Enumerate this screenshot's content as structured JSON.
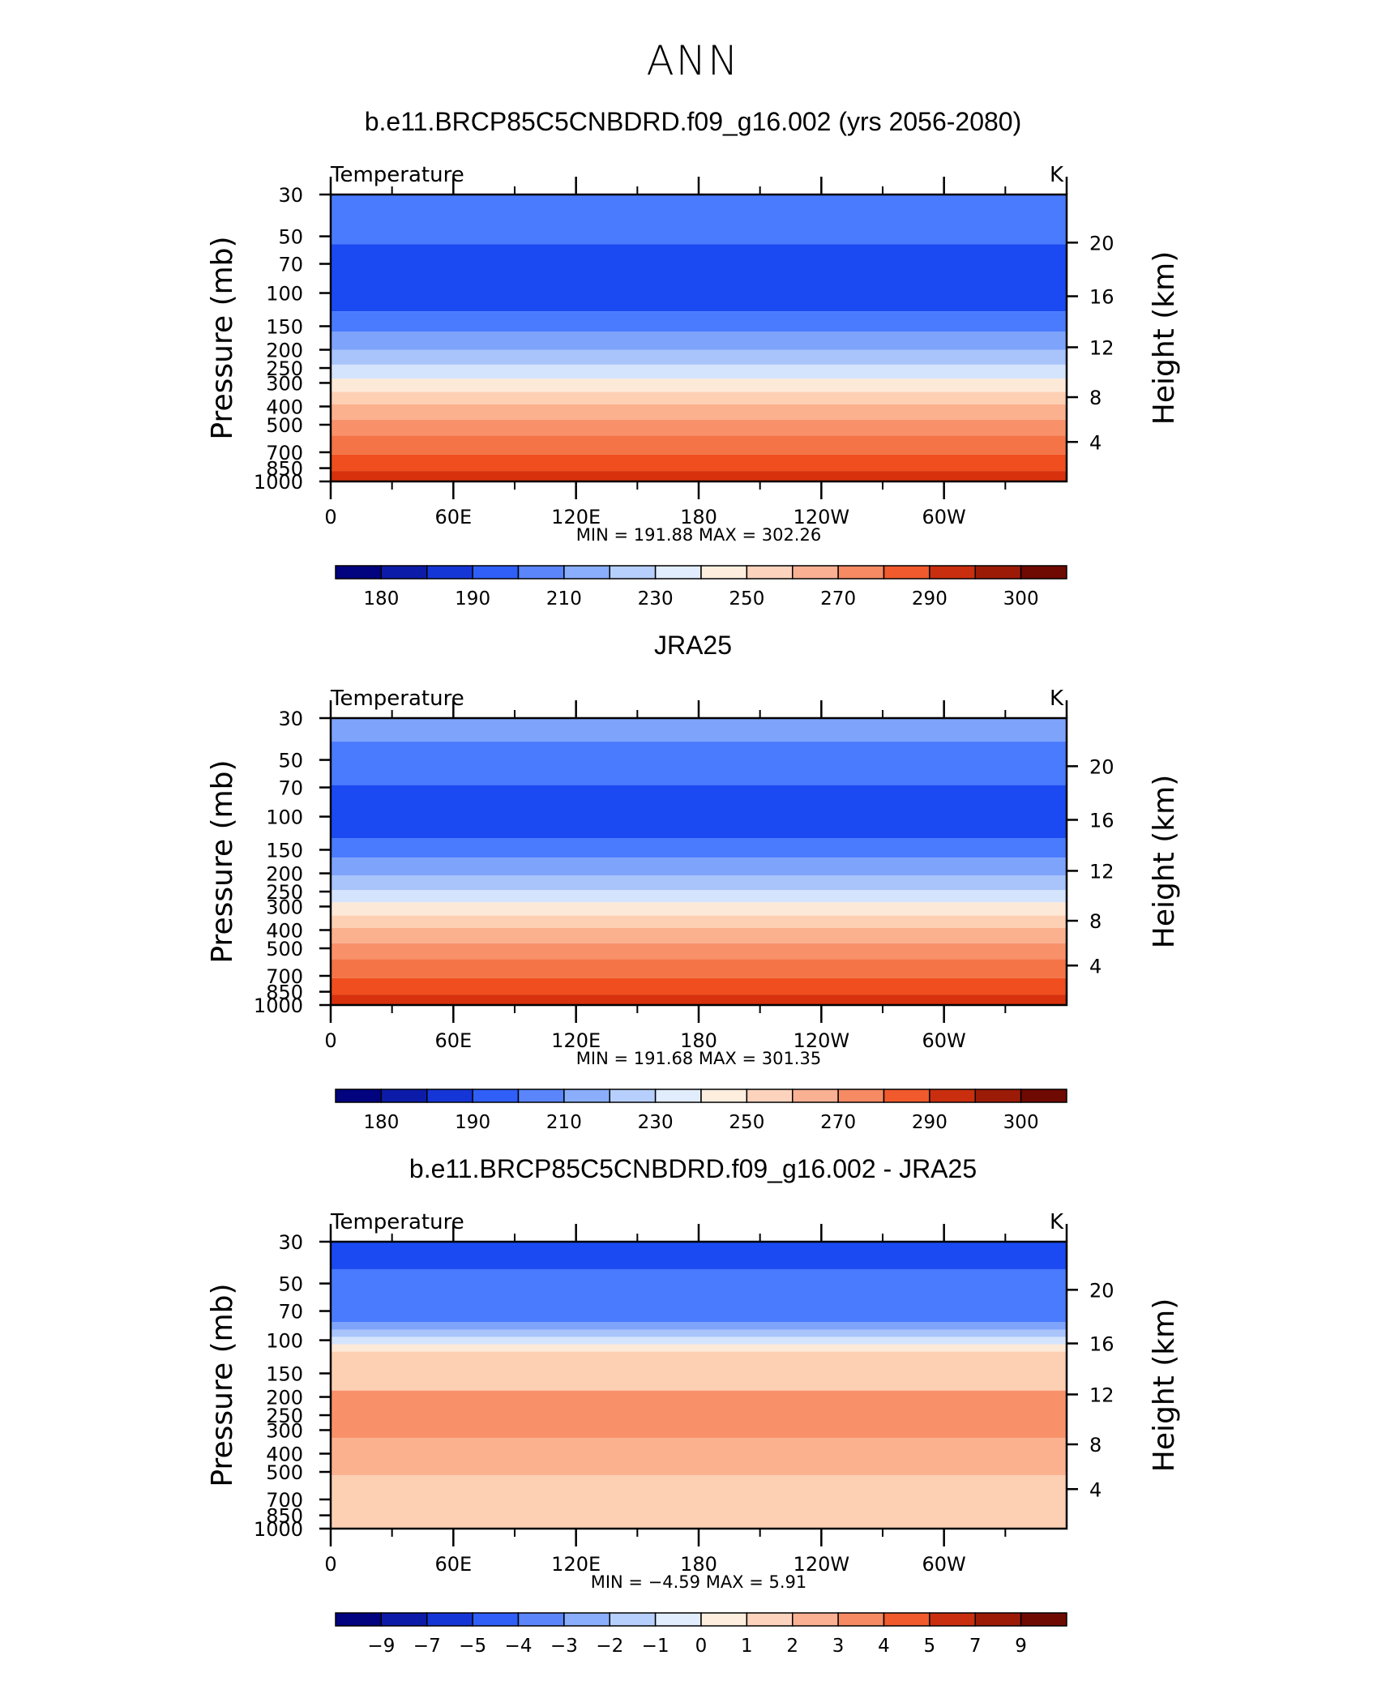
{
  "page_title": "ANN",
  "panels": [
    {
      "title": "b.e11.BRCP85C5CNBDRD.f09_g16.002 (yrs 2056-2080)",
      "left_label": "Temperature",
      "right_label": "K",
      "stats": "MIN = 191.88   MAX = 302.26",
      "bands": [
        {
          "p_top": 30,
          "p_bot": 55,
          "color": "#4a7bff"
        },
        {
          "p_top": 55,
          "p_bot": 125,
          "color": "#1b4af2"
        },
        {
          "p_top": 125,
          "p_bot": 160,
          "color": "#4a7bff"
        },
        {
          "p_top": 160,
          "p_bot": 200,
          "color": "#7ea3fb"
        },
        {
          "p_top": 200,
          "p_bot": 240,
          "color": "#a8c4fb"
        },
        {
          "p_top": 240,
          "p_bot": 285,
          "color": "#d4e4fc"
        },
        {
          "p_top": 285,
          "p_bot": 335,
          "color": "#fde9d8"
        },
        {
          "p_top": 335,
          "p_bot": 390,
          "color": "#fdd0b4"
        },
        {
          "p_top": 390,
          "p_bot": 470,
          "color": "#fbb08e"
        },
        {
          "p_top": 470,
          "p_bot": 570,
          "color": "#f8916a"
        },
        {
          "p_top": 570,
          "p_bot": 720,
          "color": "#f47447"
        },
        {
          "p_top": 720,
          "p_bot": 880,
          "color": "#f04e1e"
        },
        {
          "p_top": 880,
          "p_bot": 1000,
          "color": "#d8310e"
        }
      ],
      "chart_data": {
        "type": "heatmap",
        "title": "b.e11.BRCP85C5CNBDRD.f09_g16.002 (yrs 2056-2080)",
        "field": "Temperature",
        "units": "K",
        "min": 191.88,
        "max": 302.26,
        "colorbar_ticks": [
          "180",
          "190",
          "210",
          "230",
          "250",
          "270",
          "290",
          "300"
        ]
      }
    },
    {
      "title": "JRA25",
      "left_label": "Temperature",
      "right_label": "K",
      "stats": "MIN = 191.68   MAX = 301.35",
      "bands": [
        {
          "p_top": 30,
          "p_bot": 40,
          "color": "#7ea3fb"
        },
        {
          "p_top": 40,
          "p_bot": 68,
          "color": "#4a7bff"
        },
        {
          "p_top": 68,
          "p_bot": 130,
          "color": "#1b4af2"
        },
        {
          "p_top": 130,
          "p_bot": 165,
          "color": "#4a7bff"
        },
        {
          "p_top": 165,
          "p_bot": 205,
          "color": "#7ea3fb"
        },
        {
          "p_top": 205,
          "p_bot": 245,
          "color": "#a8c4fb"
        },
        {
          "p_top": 245,
          "p_bot": 285,
          "color": "#d4e4fc"
        },
        {
          "p_top": 285,
          "p_bot": 335,
          "color": "#fde9d8"
        },
        {
          "p_top": 335,
          "p_bot": 390,
          "color": "#fdd0b4"
        },
        {
          "p_top": 390,
          "p_bot": 470,
          "color": "#fbb08e"
        },
        {
          "p_top": 470,
          "p_bot": 570,
          "color": "#f8916a"
        },
        {
          "p_top": 570,
          "p_bot": 720,
          "color": "#f47447"
        },
        {
          "p_top": 720,
          "p_bot": 880,
          "color": "#f04e1e"
        },
        {
          "p_top": 880,
          "p_bot": 1000,
          "color": "#d8310e"
        }
      ],
      "chart_data": {
        "type": "heatmap",
        "title": "JRA25",
        "field": "Temperature",
        "units": "K",
        "min": 191.68,
        "max": 301.35,
        "colorbar_ticks": [
          "180",
          "190",
          "210",
          "230",
          "250",
          "270",
          "290",
          "300"
        ]
      }
    },
    {
      "title": "b.e11.BRCP85C5CNBDRD.f09_g16.002 - JRA25",
      "left_label": "Temperature",
      "right_label": "K",
      "stats": "MIN =   −4.59   MAX =     5.91",
      "bands": [
        {
          "p_top": 30,
          "p_bot": 42,
          "color": "#1b4af2"
        },
        {
          "p_top": 42,
          "p_bot": 80,
          "color": "#4a7bff"
        },
        {
          "p_top": 80,
          "p_bot": 88,
          "color": "#7ea3fb"
        },
        {
          "p_top": 88,
          "p_bot": 96,
          "color": "#a8c4fb"
        },
        {
          "p_top": 96,
          "p_bot": 105,
          "color": "#d4e4fc"
        },
        {
          "p_top": 105,
          "p_bot": 115,
          "color": "#fde9d8"
        },
        {
          "p_top": 115,
          "p_bot": 185,
          "color": "#fdd0b4"
        },
        {
          "p_top": 185,
          "p_bot": 330,
          "color": "#f8916a"
        },
        {
          "p_top": 330,
          "p_bot": 520,
          "color": "#fbb08e"
        },
        {
          "p_top": 520,
          "p_bot": 1000,
          "color": "#fdd0b4"
        }
      ],
      "chart_data": {
        "type": "heatmap",
        "title": "b.e11.BRCP85C5CNBDRD.f09_g16.002 - JRA25",
        "field": "Temperature",
        "units": "K",
        "min": -4.59,
        "max": 5.91,
        "colorbar_ticks": [
          "−9",
          "−7",
          "−5",
          "−4",
          "−3",
          "−2",
          "−1",
          "0",
          "1",
          "2",
          "3",
          "4",
          "5",
          "7",
          "9"
        ]
      }
    }
  ],
  "axes": {
    "ylabel_left": "Pressure  (mb)",
    "ylabel_right": "Height  (km)",
    "pressure_ticks": [
      30,
      50,
      70,
      100,
      150,
      200,
      250,
      300,
      400,
      500,
      700,
      850,
      1000
    ],
    "height_ticks": [
      {
        "label": "20",
        "p": 54
      },
      {
        "label": "16",
        "p": 104
      },
      {
        "label": "12",
        "p": 194
      },
      {
        "label": "8",
        "p": 357
      },
      {
        "label": "4",
        "p": 617
      }
    ],
    "x_ticks": [
      {
        "label": "0",
        "lon": 0
      },
      {
        "label": "60E",
        "lon": 60
      },
      {
        "label": "120E",
        "lon": 120
      },
      {
        "label": "180",
        "lon": 180
      },
      {
        "label": "120W",
        "lon": 240
      },
      {
        "label": "60W",
        "lon": 300
      }
    ]
  },
  "colorbar_colors_abs": [
    "#02037f",
    "#0c1ca8",
    "#1536d6",
    "#2f5ff7",
    "#5a85fb",
    "#8aaefb",
    "#b7cffc",
    "#e1ecfd",
    "#fdeede",
    "#fcd3bd",
    "#f9b093",
    "#f58a63",
    "#f05a2d",
    "#c92f0f",
    "#9c1b07",
    "#6f0a03"
  ],
  "colorbar_colors_diff": [
    "#02037f",
    "#0c1ca8",
    "#1536d6",
    "#2f5ff7",
    "#5a85fb",
    "#8aaefb",
    "#b7cffc",
    "#e1ecfd",
    "#fdeede",
    "#fcd3bd",
    "#f9b093",
    "#f58a63",
    "#f05a2d",
    "#c92f0f",
    "#9c1b07",
    "#6f0a03"
  ]
}
